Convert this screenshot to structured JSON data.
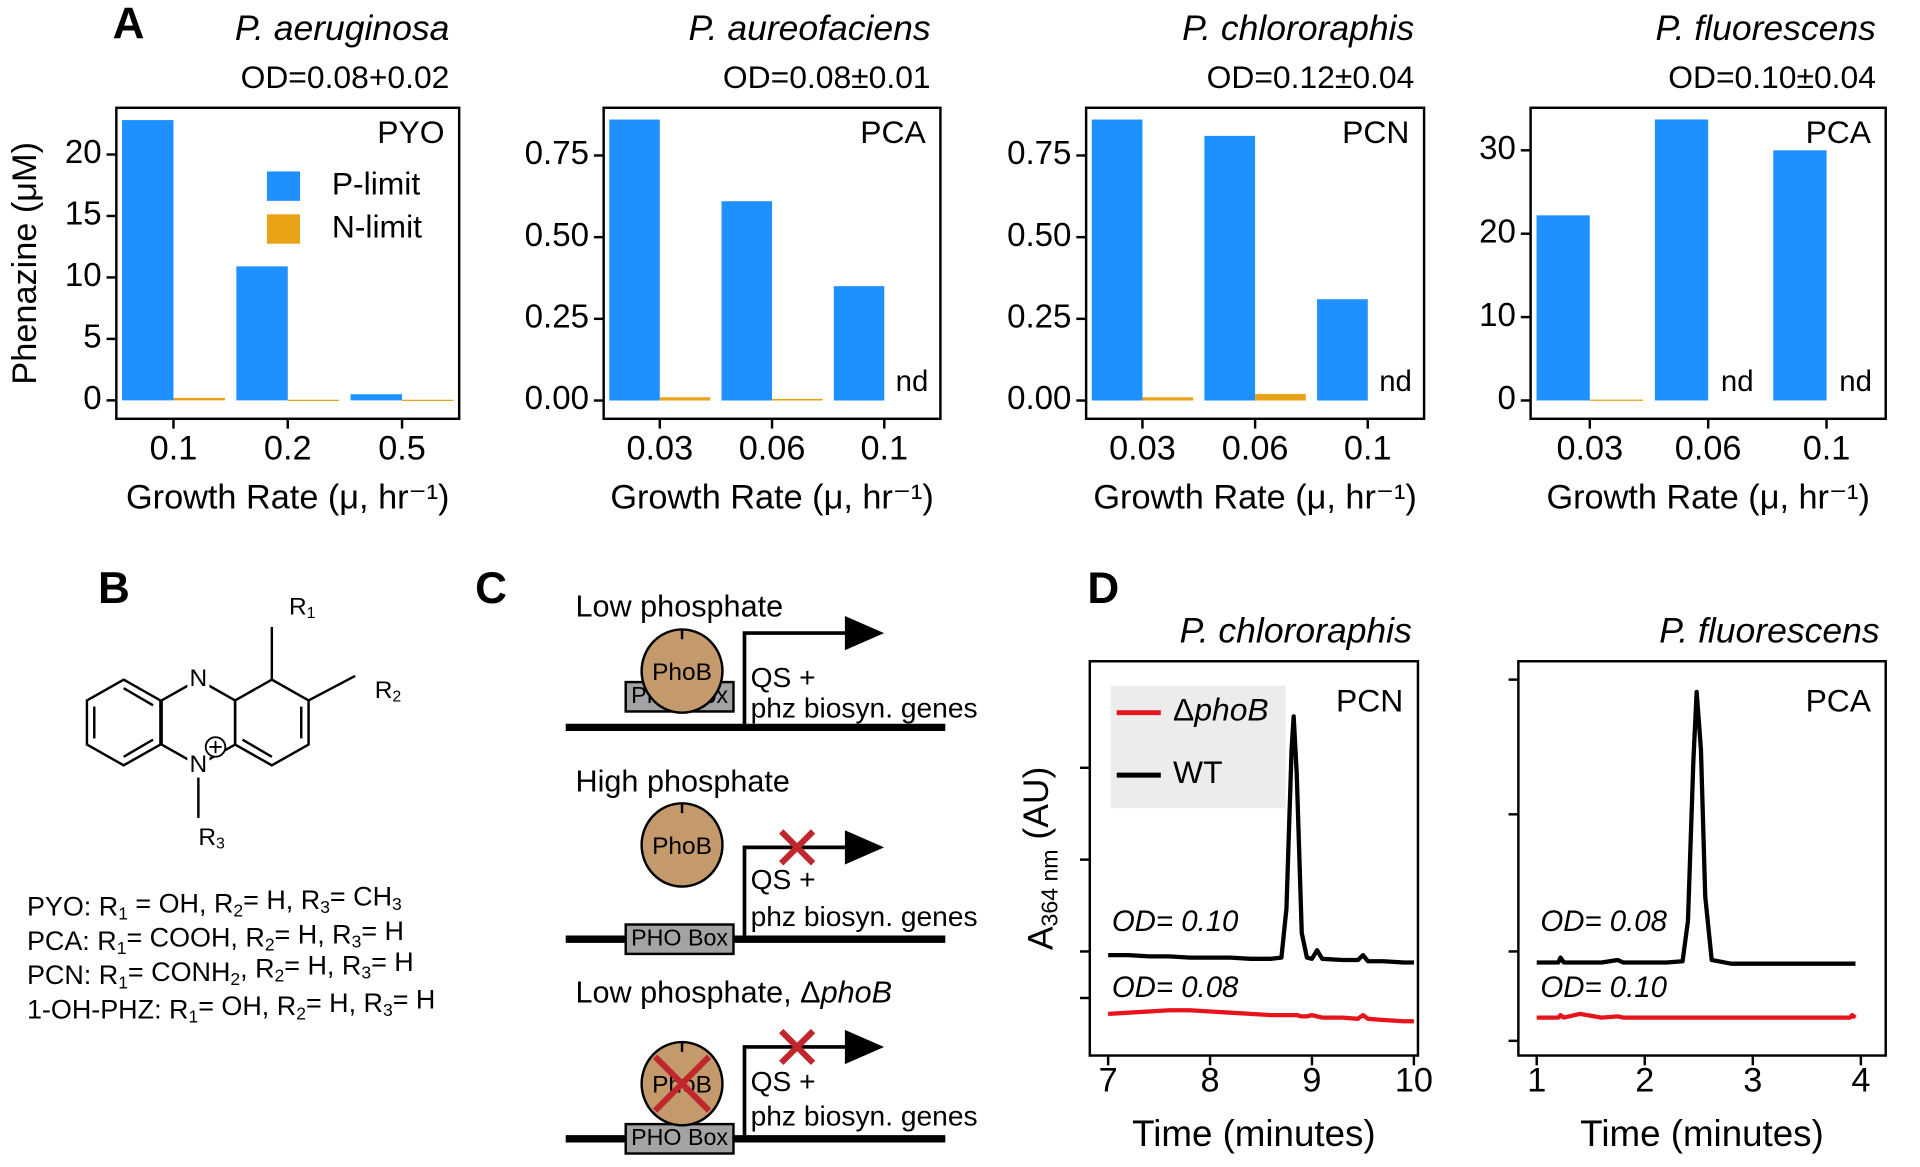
{
  "panels": [
    "A",
    "B",
    "C",
    "D"
  ],
  "chart_data": [
    {
      "type": "bar",
      "title": "P. aeruginosa",
      "subtitle": "OD=0.08+0.02",
      "label": "PYO",
      "ylabel": "Phenazine (μM)",
      "xlabel": "Growth Rate (μ, hr⁻¹)",
      "categories": [
        "0.1",
        "0.2",
        "0.5"
      ],
      "series": [
        {
          "name": "P-limit",
          "color": "#1e90ff",
          "values": [
            22.8,
            10.9,
            0.5
          ]
        },
        {
          "name": "N-limit",
          "color": "#e8a317",
          "values": [
            0.2,
            0.05,
            0.05
          ]
        }
      ],
      "ylim": [
        -1.5,
        23.8
      ],
      "yticks": [
        0,
        5,
        10,
        15,
        20
      ],
      "legend": "upper right"
    },
    {
      "type": "bar",
      "title": "P. aureofaciens",
      "subtitle": "OD=0.08±0.01",
      "label": "PCA",
      "xlabel": "Growth Rate (μ, hr⁻¹)",
      "categories": [
        "0.03",
        "0.06",
        "0.1"
      ],
      "series": [
        {
          "color": "#1e90ff",
          "values": [
            0.86,
            0.61,
            0.35
          ]
        },
        {
          "color": "#e8a317",
          "values": [
            0.01,
            0.005,
            null
          ],
          "value_labels": [
            null,
            null,
            "nd"
          ]
        }
      ],
      "ylim": [
        -0.056,
        0.896
      ],
      "yticks": [
        {
          "value": 0,
          "label": "0.00"
        },
        0.25,
        {
          "value": 0.5,
          "label": "0.50"
        },
        0.75
      ]
    },
    {
      "type": "bar",
      "title": "P. chlororaphis",
      "subtitle": "OD=0.12±0.04",
      "label": "PCN",
      "xlabel": "Growth Rate (μ, hr⁻¹)",
      "categories": [
        "0.03",
        "0.06",
        "0.1"
      ],
      "series": [
        {
          "color": "#1e90ff",
          "values": [
            0.86,
            0.81,
            0.31
          ]
        },
        {
          "color": "#e8a317",
          "values": [
            0.01,
            0.02,
            null
          ],
          "value_labels": [
            null,
            null,
            "nd"
          ]
        }
      ],
      "ylim": [
        -0.056,
        0.896
      ],
      "yticks": [
        {
          "value": 0,
          "label": "0.00"
        },
        0.25,
        {
          "value": 0.5,
          "label": "0.50"
        },
        0.75
      ]
    },
    {
      "type": "bar",
      "title": "P. fluorescens",
      "subtitle": "OD=0.10±0.04",
      "label": "PCA",
      "xlabel": "Growth Rate (μ, hr⁻¹)",
      "categories": [
        "0.03",
        "0.06",
        "0.1"
      ],
      "series": [
        {
          "color": "#1e90ff",
          "values": [
            22.2,
            33.7,
            30
          ]
        },
        {
          "color": "#e8a317",
          "values": [
            0.1,
            null,
            null
          ],
          "value_labels": [
            null,
            "nd",
            "nd"
          ]
        }
      ],
      "ylim": [
        -2.2,
        35.1
      ],
      "yticks": [
        0,
        10,
        20,
        30
      ]
    },
    {
      "type": "line",
      "title": "P. chlororaphis",
      "label": "PCN",
      "ylabel": [
        "A",
        "364 nm",
        " (AU)"
      ],
      "xlabel": "Time (minutes)",
      "x": [
        7.0,
        7.2,
        7.4,
        7.6,
        7.8,
        8.0,
        8.2,
        8.4,
        8.6,
        8.7,
        8.75,
        8.8,
        8.82,
        8.85,
        8.9,
        8.95,
        9.0,
        9.05,
        9.1,
        9.3,
        9.45,
        9.5,
        9.55,
        9.7,
        9.9,
        10.0
      ],
      "series": [
        {
          "name": [
            "Δ",
            "phoB"
          ],
          "color": "#e8141b",
          "values": [
            0.34,
            0.35,
            0.36,
            0.37,
            0.37,
            0.36,
            0.35,
            0.34,
            0.33,
            0.33,
            0.33,
            0.33,
            0.33,
            0.33,
            0.32,
            0.32,
            0.33,
            0.32,
            0.31,
            0.31,
            0.3,
            0.33,
            0.3,
            0.29,
            0.28,
            0.28
          ]
        },
        {
          "name": [
            "WT"
          ],
          "color": "#000000",
          "values": [
            0.82,
            0.82,
            0.81,
            0.81,
            0.8,
            0.8,
            0.8,
            0.79,
            0.79,
            0.8,
            1.2,
            2.5,
            2.77,
            2.3,
            1.0,
            0.8,
            0.79,
            0.86,
            0.79,
            0.78,
            0.78,
            0.82,
            0.77,
            0.77,
            0.76,
            0.76
          ]
        }
      ],
      "annotations": [
        {
          "text": "OD= 0.10",
          "color": "#000000"
        },
        {
          "text": "OD= 0.08",
          "color": "#e8141b"
        }
      ],
      "xlim": [
        6.82,
        10.04
      ],
      "xticks": [
        7,
        8,
        9,
        10
      ],
      "ylim": [
        0,
        3.22
      ],
      "yticks": [
        0.47,
        0.85,
        1.6,
        2.35
      ],
      "legend": "upper left"
    },
    {
      "type": "line",
      "title": "P. fluorescens",
      "label": "PCA",
      "xlabel": "Time (minutes)",
      "x": [
        1.0,
        1.2,
        1.22,
        1.25,
        1.4,
        1.6,
        1.75,
        1.8,
        2.0,
        2.2,
        2.35,
        2.4,
        2.45,
        2.48,
        2.52,
        2.56,
        2.62,
        2.8,
        3.0,
        3.3,
        3.6,
        3.9,
        3.92,
        3.95
      ],
      "series": [
        {
          "color": "#e8141b",
          "values": [
            0.31,
            0.31,
            0.33,
            0.31,
            0.34,
            0.31,
            0.32,
            0.31,
            0.31,
            0.31,
            0.31,
            0.31,
            0.31,
            0.31,
            0.31,
            0.31,
            0.31,
            0.31,
            0.31,
            0.31,
            0.31,
            0.31,
            0.33,
            0.31
          ]
        },
        {
          "color": "#000000",
          "values": [
            0.76,
            0.76,
            0.8,
            0.76,
            0.76,
            0.76,
            0.78,
            0.76,
            0.76,
            0.76,
            0.77,
            1.1,
            2.4,
            2.97,
            2.5,
            1.3,
            0.78,
            0.75,
            0.75,
            0.75,
            0.75,
            0.75,
            0.75,
            0.75
          ]
        }
      ],
      "annotations": [
        {
          "text": "OD= 0.08",
          "color": "#000000"
        },
        {
          "text": "OD= 0.10",
          "color": "#e8141b"
        }
      ],
      "xlim": [
        0.83,
        4.23
      ],
      "xticks": [
        1,
        2,
        3,
        4
      ],
      "ylim": [
        0,
        3.22
      ],
      "yticks": [
        0.12,
        0.85,
        1.97,
        3.07
      ]
    }
  ],
  "structure": {
    "atoms": [
      "N",
      "N"
    ],
    "groups": [
      [
        "R",
        "1"
      ],
      [
        "R",
        "2"
      ],
      [
        "R",
        "3"
      ]
    ],
    "formulas": [
      [
        "PYO: R",
        "1",
        " = OH, R",
        "2",
        "= H, R",
        "3",
        "= CH",
        "3"
      ],
      [
        "PCA: R",
        "1",
        "= COOH, R",
        "2",
        "= H, R",
        "3",
        "= H"
      ],
      [
        "PCN: R",
        "1",
        "= CONH",
        "2",
        ", R",
        "2",
        "= H, R",
        "3",
        "= H"
      ],
      [
        "1-OH-PHZ: R",
        "1",
        "= OH, R",
        "2",
        "= H, R",
        "3",
        "= H"
      ]
    ]
  },
  "diagram": {
    "rows": [
      {
        "title": [
          "Low phosphate"
        ],
        "protein": "PhoB",
        "box": "PHO Box",
        "genes": [
          "QS +",
          "phz biosyn. genes"
        ]
      },
      {
        "title": [
          "High phosphate"
        ],
        "protein": "PhoB",
        "box": "PHO Box",
        "genes": [
          "QS +",
          "phz biosyn. genes"
        ]
      },
      {
        "title": [
          "Low phosphate, Δ",
          "phoB"
        ],
        "protein": "PhoB",
        "box": "PHO Box",
        "genes": [
          "QS +",
          "phz biosyn. genes"
        ]
      }
    ]
  }
}
